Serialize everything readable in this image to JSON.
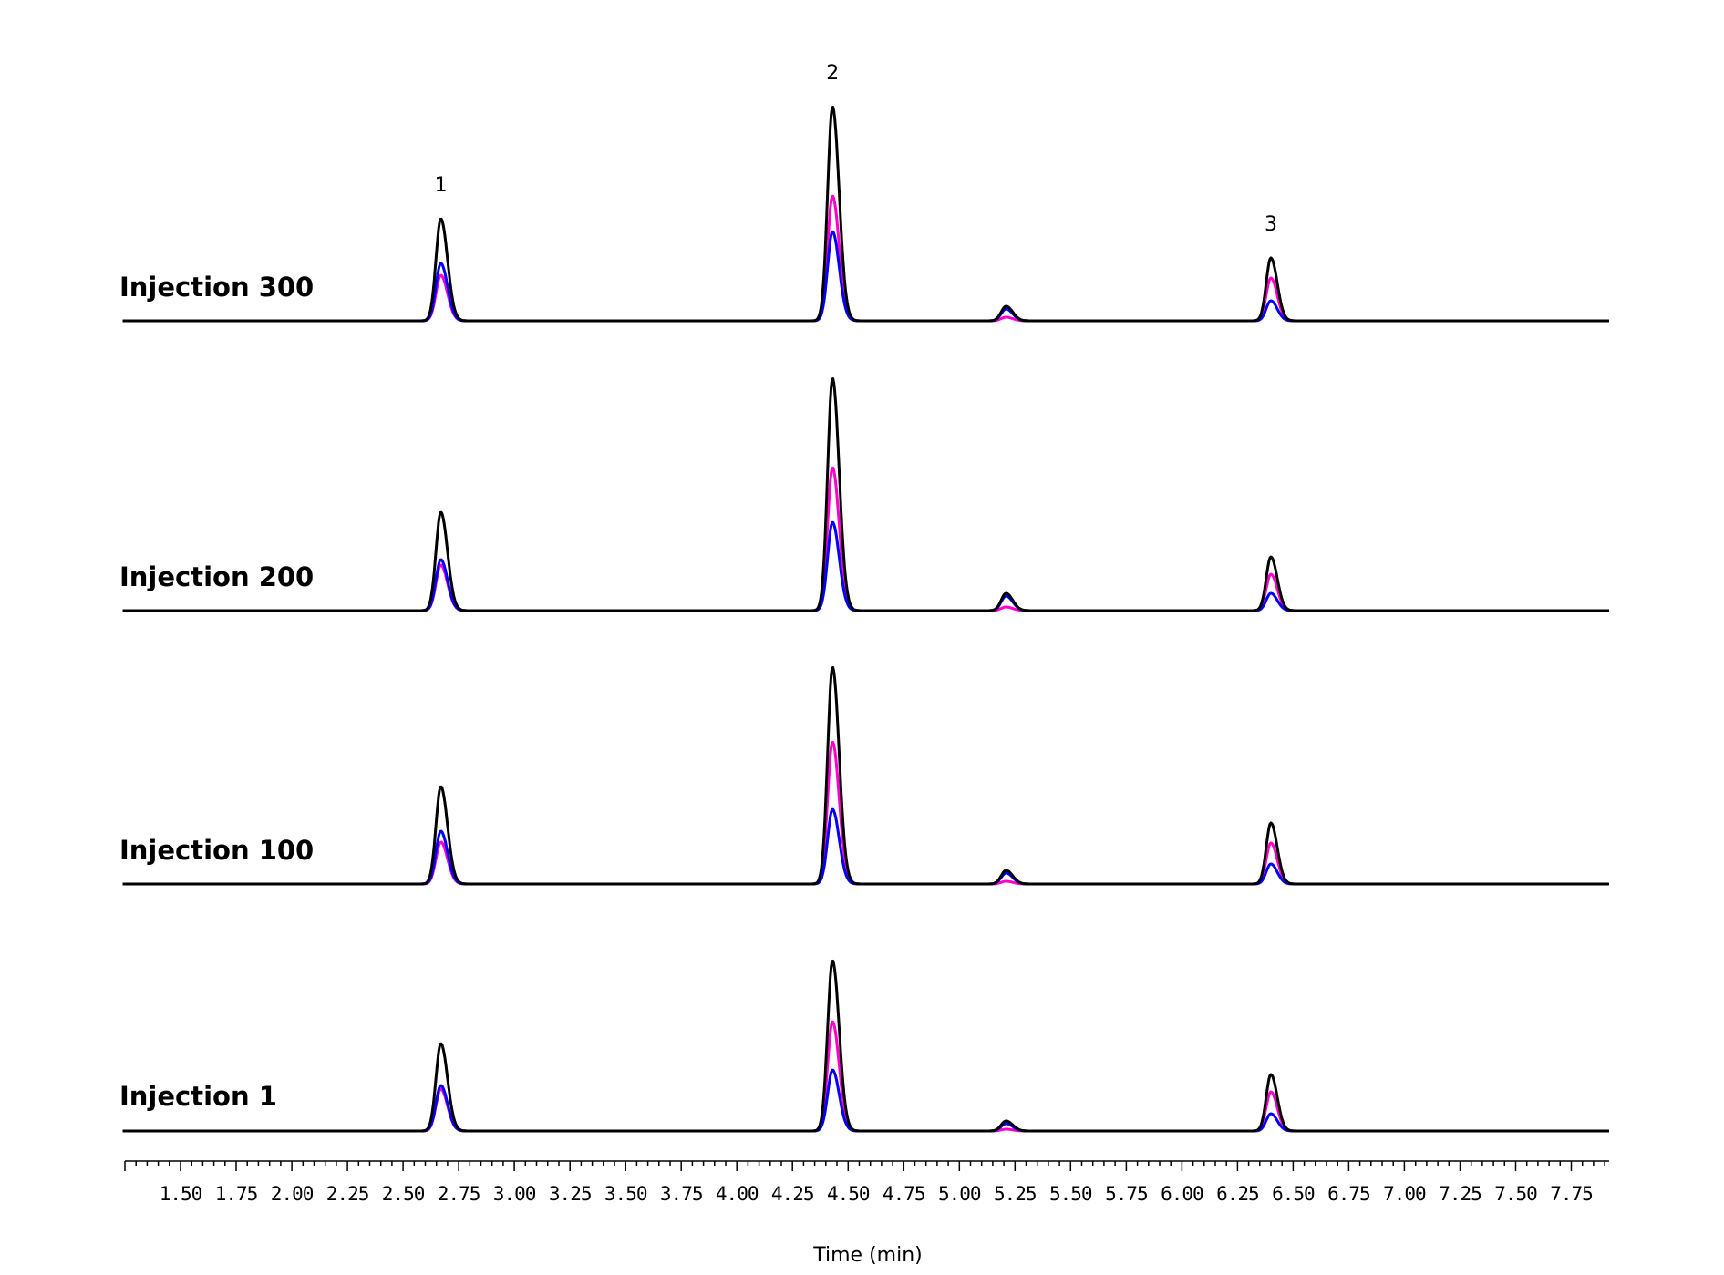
{
  "chart_data": {
    "type": "line",
    "xlabel": "Time (min)",
    "ylabel": "",
    "xlim": [
      1.25,
      7.92
    ],
    "x_ticks": [
      "1.50",
      "1.75",
      "2.00",
      "2.25",
      "2.50",
      "2.75",
      "3.00",
      "3.25",
      "3.50",
      "3.75",
      "4.00",
      "4.25",
      "4.50",
      "4.75",
      "5.00",
      "5.25",
      "5.50",
      "5.75",
      "6.00",
      "6.25",
      "6.50",
      "6.75",
      "7.00",
      "7.25",
      "7.50",
      "7.75"
    ],
    "peak_labels": [
      {
        "text": "1",
        "x": 2.67
      },
      {
        "text": "2",
        "x": 4.43
      },
      {
        "text": "3",
        "x": 6.4
      }
    ],
    "series_colors": {
      "black": "#000000",
      "magenta": "#ff00cc",
      "blue": "#0000ff"
    },
    "panels": [
      {
        "label": "Injection 300",
        "peaks": [
          {
            "x": 2.67,
            "black": 112,
            "blue": 63,
            "magenta": 50
          },
          {
            "x": 4.43,
            "black": 235,
            "magenta": 137,
            "blue": 98
          },
          {
            "x": 5.21,
            "black": 16,
            "blue": 13,
            "magenta": 4
          },
          {
            "x": 6.4,
            "black": 69,
            "magenta": 47,
            "blue": 22
          }
        ]
      },
      {
        "label": "Injection 200",
        "peaks": [
          {
            "x": 2.67,
            "black": 108,
            "blue": 56,
            "magenta": 50
          },
          {
            "x": 4.43,
            "black": 255,
            "magenta": 157,
            "blue": 97
          },
          {
            "x": 5.21,
            "black": 19,
            "blue": 16,
            "magenta": 4
          },
          {
            "x": 6.4,
            "black": 59,
            "magenta": 40,
            "blue": 19
          }
        ]
      },
      {
        "label": "Injection 100",
        "peaks": [
          {
            "x": 2.67,
            "black": 107,
            "blue": 58,
            "magenta": 46
          },
          {
            "x": 4.43,
            "black": 238,
            "magenta": 156,
            "blue": 82
          },
          {
            "x": 5.21,
            "black": 15,
            "blue": 12,
            "magenta": 3
          },
          {
            "x": 6.4,
            "black": 67,
            "magenta": 45,
            "blue": 22
          }
        ]
      },
      {
        "label": "Injection 1",
        "peaks": [
          {
            "x": 2.67,
            "black": 96,
            "blue": 50,
            "magenta": 46
          },
          {
            "x": 4.43,
            "black": 187,
            "magenta": 120,
            "blue": 67
          },
          {
            "x": 5.21,
            "black": 11,
            "blue": 8,
            "magenta": 2
          },
          {
            "x": 6.4,
            "black": 62,
            "magenta": 43,
            "blue": 19
          }
        ]
      }
    ]
  }
}
